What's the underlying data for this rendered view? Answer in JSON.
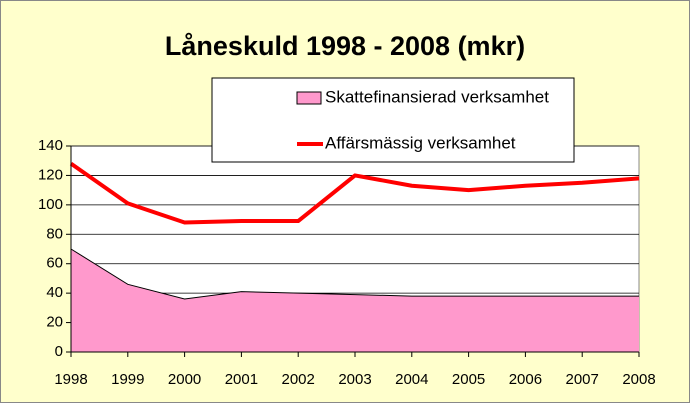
{
  "chart_data": {
    "type": "combo",
    "title": "Låneskuld 1998 - 2008 (mkr)",
    "x": [
      1998,
      1999,
      2000,
      2001,
      2002,
      2003,
      2004,
      2005,
      2006,
      2007,
      2008
    ],
    "xlim": [
      1998,
      2008
    ],
    "xticks": [
      1998,
      1999,
      2000,
      2001,
      2002,
      2003,
      2004,
      2005,
      2006,
      2007,
      2008
    ],
    "ylim": [
      0,
      140
    ],
    "yticks": [
      0,
      20,
      40,
      60,
      80,
      100,
      120,
      140
    ],
    "grid": true,
    "series": [
      {
        "name": "Skattefinansierad verksamhet",
        "type": "area",
        "color": "#ff99cc",
        "values": [
          70,
          46,
          36,
          41,
          40,
          39,
          38,
          38,
          38,
          38,
          38
        ]
      },
      {
        "name": "Affärsmässig verksamhet",
        "type": "line",
        "color": "#ff0000",
        "values": [
          128,
          101,
          88,
          89,
          89,
          120,
          113,
          110,
          113,
          115,
          118
        ]
      }
    ]
  }
}
